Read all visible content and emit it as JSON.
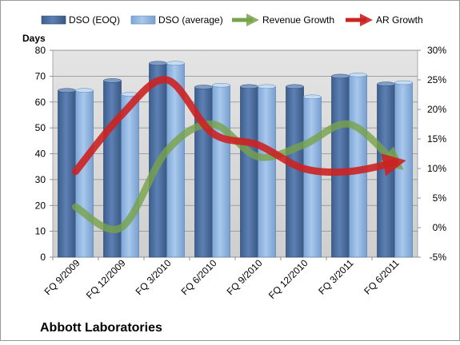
{
  "chart_data": {
    "type": "bar",
    "title": "Abbott Laboratories",
    "categories": [
      "FQ 9/2009",
      "FQ 12/2009",
      "FQ 3/2010",
      "FQ 6/2010",
      "FQ 9/2010",
      "FQ 12/2010",
      "FQ 3/2011",
      "FQ 6/2011"
    ],
    "ylabel": "Days",
    "ylim": [
      0,
      80
    ],
    "yticks": [
      "0",
      "10",
      "20",
      "30",
      "40",
      "50",
      "60",
      "70",
      "80"
    ],
    "y2lim": [
      -5,
      30
    ],
    "y2ticks": [
      "-5%",
      "0%",
      "5%",
      "10%",
      "15%",
      "20%",
      "25%",
      "30%"
    ],
    "series": [
      {
        "name": "DSO (EOQ)",
        "kind": "bar",
        "axis": "left",
        "color": "#4a6fa5",
        "values": [
          64.5,
          68.3,
          75.0,
          65.8,
          66.0,
          66.0,
          70.0,
          67.0
        ]
      },
      {
        "name": "DSO (average)",
        "kind": "bar",
        "axis": "left",
        "color": "#8fb4df",
        "values": [
          64.5,
          63.0,
          75.0,
          66.5,
          66.0,
          62.0,
          70.5,
          67.5
        ]
      },
      {
        "name": "Revenue Growth",
        "kind": "line",
        "axis": "right",
        "color": "#77a34a",
        "values": [
          3.5,
          0.0,
          13.0,
          17.5,
          12.0,
          14.0,
          17.5,
          11.0
        ]
      },
      {
        "name": "AR Growth",
        "kind": "line",
        "axis": "right",
        "color": "#cc2222",
        "values": [
          9.5,
          19.0,
          25.0,
          16.0,
          14.0,
          10.0,
          9.5,
          11.0
        ]
      }
    ],
    "grid": true,
    "legend_position": "top"
  }
}
